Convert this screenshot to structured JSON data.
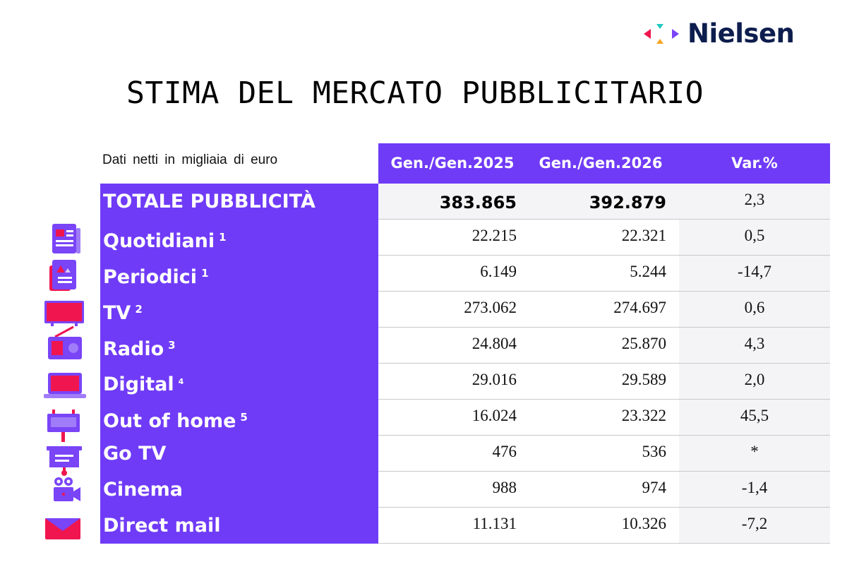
{
  "brand": {
    "name": "Nielsen"
  },
  "title": "STIMA DEL MERCATO PUBBLICITARIO",
  "subtitle": "Dati netti in migliaia di euro",
  "colors": {
    "accent": "#6f3bf7",
    "icon_primary": "#7a44f7",
    "icon_secondary": "#f0154f",
    "brand_text": "#0d1d4e"
  },
  "table": {
    "headers": [
      "Gen./Gen.2025",
      "Gen./Gen.2026",
      "Var.%"
    ],
    "total": {
      "label": "TOTALE PUBBLICITÀ",
      "v2025": "383.865",
      "v2026": "392.879",
      "var": "2,3"
    },
    "rows": [
      {
        "label": "Quotidiani",
        "note": "1",
        "v2025": "22.215",
        "v2026": "22.321",
        "var": "0,5",
        "icon": "newspaper-icon"
      },
      {
        "label": "Periodici",
        "note": "1",
        "v2025": "6.149",
        "v2026": "5.244",
        "var": "-14,7",
        "icon": "magazine-icon"
      },
      {
        "label": "TV",
        "note": "2",
        "v2025": "273.062",
        "v2026": "274.697",
        "var": "0,6",
        "icon": "tv-icon"
      },
      {
        "label": "Radio",
        "note": "3",
        "v2025": "24.804",
        "v2026": "25.870",
        "var": "4,3",
        "icon": "radio-icon"
      },
      {
        "label": "Digital",
        "note": "4",
        "v2025": "29.016",
        "v2026": "29.589",
        "var": "2,0",
        "icon": "laptop-icon"
      },
      {
        "label": "Out of home",
        "note": "5",
        "v2025": "16.024",
        "v2026": "23.322",
        "var": "45,5",
        "icon": "billboard-icon"
      },
      {
        "label": "Go TV",
        "note": "",
        "v2025": "476",
        "v2026": "536",
        "var": "*",
        "icon": "screen-stand-icon"
      },
      {
        "label": "Cinema",
        "note": "",
        "v2025": "988",
        "v2026": "974",
        "var": "-1,4",
        "icon": "movie-camera-icon"
      },
      {
        "label": "Direct mail",
        "note": "",
        "v2025": "11.131",
        "v2026": "10.326",
        "var": "-7,2",
        "icon": "envelope-icon"
      }
    ]
  }
}
